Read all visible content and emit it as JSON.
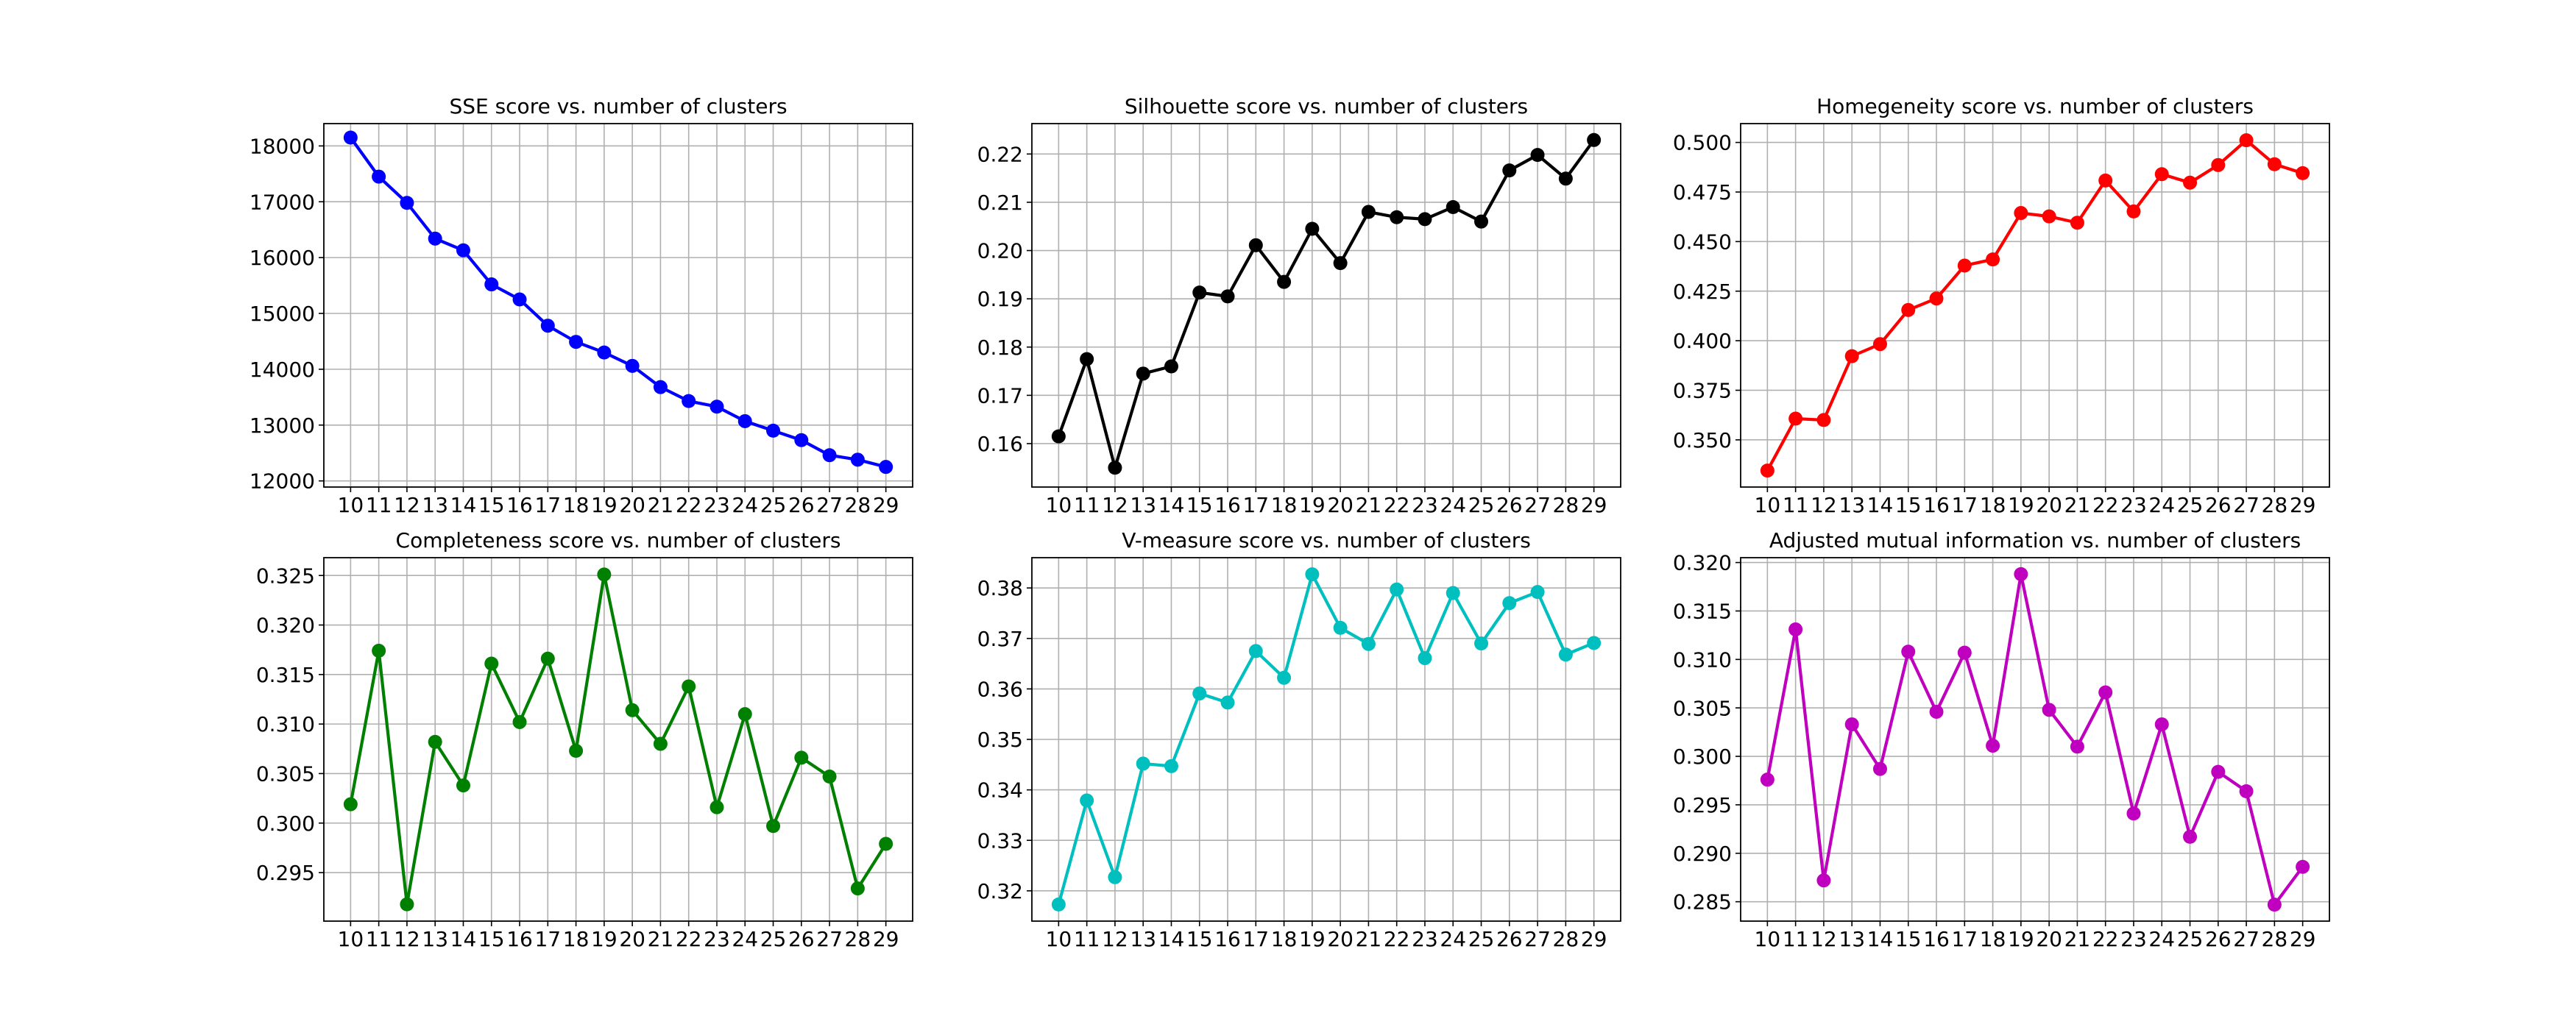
{
  "chart_data": [
    {
      "type": "line",
      "title": "SSE score vs. number of clusters",
      "xlabel": "",
      "ylabel": "",
      "color": "#0000ff",
      "x": [
        10,
        11,
        12,
        13,
        14,
        15,
        16,
        17,
        18,
        19,
        20,
        21,
        22,
        23,
        24,
        25,
        26,
        27,
        28,
        29
      ],
      "values": [
        18150,
        17450,
        16980,
        16340,
        16130,
        15520,
        15250,
        14780,
        14490,
        14300,
        14060,
        13680,
        13430,
        13330,
        13070,
        12900,
        12730,
        12460,
        12380,
        12250
      ],
      "ylim": [
        11890,
        18400
      ],
      "yticks": [
        12000,
        13000,
        14000,
        15000,
        16000,
        17000,
        18000
      ],
      "ytick_labels": [
        "12000",
        "13000",
        "14000",
        "15000",
        "16000",
        "17000",
        "18000"
      ],
      "grid": true
    },
    {
      "type": "line",
      "title": "Silhouette score vs. number of clusters",
      "xlabel": "",
      "ylabel": "",
      "color": "#000000",
      "x": [
        10,
        11,
        12,
        13,
        14,
        15,
        16,
        17,
        18,
        19,
        20,
        21,
        22,
        23,
        24,
        25,
        26,
        27,
        28,
        29
      ],
      "values": [
        0.1615,
        0.1775,
        0.155,
        0.1745,
        0.176,
        0.1913,
        0.1905,
        0.2011,
        0.1935,
        0.2045,
        0.1974,
        0.208,
        0.2069,
        0.2065,
        0.209,
        0.206,
        0.2166,
        0.2198,
        0.2149,
        0.2229
      ],
      "ylim": [
        0.151,
        0.2263
      ],
      "yticks": [
        0.16,
        0.17,
        0.18,
        0.19,
        0.2,
        0.21,
        0.22
      ],
      "ytick_labels": [
        "0.16",
        "0.17",
        "0.18",
        "0.19",
        "0.20",
        "0.21",
        "0.22"
      ],
      "grid": true
    },
    {
      "type": "line",
      "title": "Homegeneity score vs. number of clusters",
      "xlabel": "",
      "ylabel": "",
      "color": "#ff0000",
      "x": [
        10,
        11,
        12,
        13,
        14,
        15,
        16,
        17,
        18,
        19,
        20,
        21,
        22,
        23,
        24,
        25,
        26,
        27,
        28,
        29
      ],
      "values": [
        0.3345,
        0.3607,
        0.36,
        0.3922,
        0.3983,
        0.4155,
        0.4213,
        0.4379,
        0.441,
        0.4644,
        0.4627,
        0.4595,
        0.4808,
        0.4652,
        0.484,
        0.4797,
        0.4886,
        0.5011,
        0.489,
        0.4845
      ],
      "ylim": [
        0.3262,
        0.5095
      ],
      "yticks": [
        0.35,
        0.375,
        0.4,
        0.425,
        0.45,
        0.475,
        0.5
      ],
      "ytick_labels": [
        "0.350",
        "0.375",
        "0.400",
        "0.425",
        "0.450",
        "0.475",
        "0.500"
      ],
      "grid": true
    },
    {
      "type": "line",
      "title": "Completeness score vs. number of clusters",
      "xlabel": "",
      "ylabel": "",
      "color": "#008000",
      "x": [
        10,
        11,
        12,
        13,
        14,
        15,
        16,
        17,
        18,
        19,
        20,
        21,
        22,
        23,
        24,
        25,
        26,
        27,
        28,
        29
      ],
      "values": [
        0.3019,
        0.3174,
        0.2918,
        0.3082,
        0.3038,
        0.3161,
        0.3102,
        0.3166,
        0.3073,
        0.3251,
        0.3114,
        0.308,
        0.3138,
        0.3016,
        0.311,
        0.2997,
        0.3066,
        0.3047,
        0.2934,
        0.2979
      ],
      "ylim": [
        0.2901,
        0.3268
      ],
      "yticks": [
        0.295,
        0.3,
        0.305,
        0.31,
        0.315,
        0.32,
        0.325
      ],
      "ytick_labels": [
        "0.295",
        "0.300",
        "0.305",
        "0.310",
        "0.315",
        "0.320",
        "0.325"
      ],
      "grid": true
    },
    {
      "type": "line",
      "title": "V-measure score vs. number of clusters",
      "xlabel": "",
      "ylabel": "",
      "color": "#00bfbf",
      "x": [
        10,
        11,
        12,
        13,
        14,
        15,
        16,
        17,
        18,
        19,
        20,
        21,
        22,
        23,
        24,
        25,
        26,
        27,
        28,
        29
      ],
      "values": [
        0.3173,
        0.3379,
        0.3227,
        0.3452,
        0.3447,
        0.3591,
        0.3573,
        0.3675,
        0.3622,
        0.3827,
        0.3721,
        0.3689,
        0.3797,
        0.3661,
        0.379,
        0.369,
        0.377,
        0.3792,
        0.3668,
        0.3691
      ],
      "ylim": [
        0.314,
        0.386
      ],
      "yticks": [
        0.32,
        0.33,
        0.34,
        0.35,
        0.36,
        0.37,
        0.38
      ],
      "ytick_labels": [
        "0.32",
        "0.33",
        "0.34",
        "0.35",
        "0.36",
        "0.37",
        "0.38"
      ],
      "grid": true
    },
    {
      "type": "line",
      "title": "Adjusted mutual information vs. number of clusters",
      "xlabel": "",
      "ylabel": "",
      "color": "#bf00bf",
      "x": [
        10,
        11,
        12,
        13,
        14,
        15,
        16,
        17,
        18,
        19,
        20,
        21,
        22,
        23,
        24,
        25,
        26,
        27,
        28,
        29
      ],
      "values": [
        0.2976,
        0.3131,
        0.2872,
        0.3033,
        0.2987,
        0.3108,
        0.3046,
        0.3107,
        0.3011,
        0.3188,
        0.3048,
        0.301,
        0.3066,
        0.2941,
        0.3033,
        0.2917,
        0.2984,
        0.2964,
        0.2847,
        0.2886
      ],
      "ylim": [
        0.283,
        0.3205
      ],
      "yticks": [
        0.285,
        0.29,
        0.295,
        0.3,
        0.305,
        0.31,
        0.315,
        0.32
      ],
      "ytick_labels": [
        "0.285",
        "0.290",
        "0.295",
        "0.300",
        "0.305",
        "0.310",
        "0.315",
        "0.320"
      ],
      "grid": true
    }
  ]
}
